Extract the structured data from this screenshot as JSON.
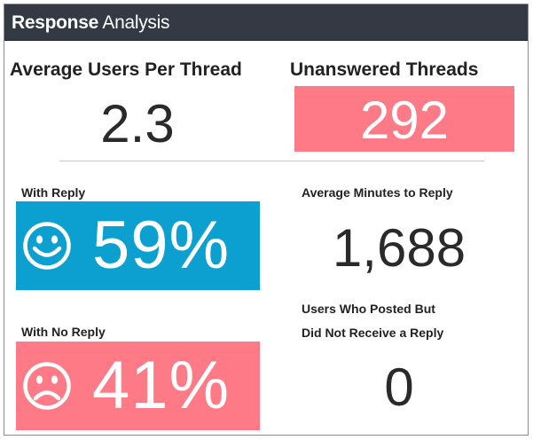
{
  "header": {
    "title_bold": "Response",
    "title_light": "Analysis"
  },
  "metrics": {
    "avg_users_per_thread": {
      "label": "Average Users Per Thread",
      "value": "2.3"
    },
    "unanswered_threads": {
      "label": "Unanswered Threads",
      "value": "292"
    },
    "with_reply": {
      "label": "With Reply",
      "value": "59%",
      "icon": "smiley-face-icon"
    },
    "avg_minutes_to_reply": {
      "label": "Average Minutes to Reply",
      "value": "1,688"
    },
    "with_no_reply": {
      "label": "With No Reply",
      "value": "41%",
      "icon": "sad-face-icon"
    },
    "users_posted_no_reply": {
      "label_line1": "Users Who Posted But",
      "label_line2": "Did Not Receive a Reply",
      "value": "0"
    }
  },
  "colors": {
    "header_bg": "#343a43",
    "positive": "#0ba0cf",
    "negative": "#fe7a86"
  }
}
